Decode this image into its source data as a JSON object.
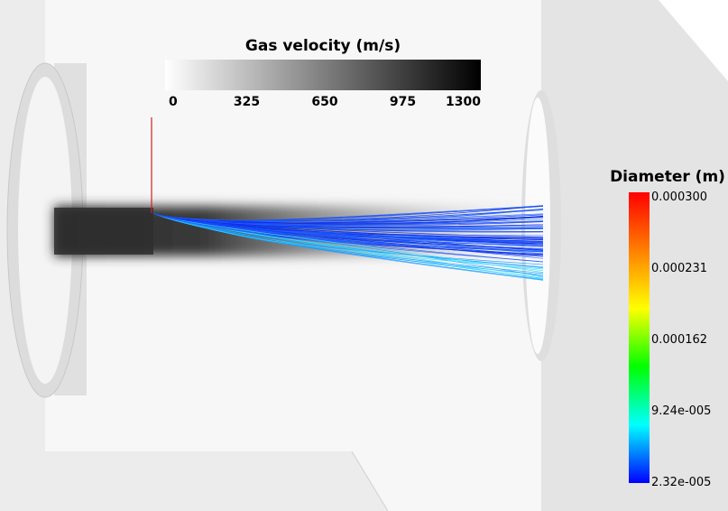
{
  "velocity_legend": {
    "title": "Gas velocity (m/s)",
    "labels": [
      "0",
      "325",
      "650",
      "975",
      "1300"
    ]
  },
  "diameter_legend": {
    "title": "Diameter (m)",
    "labels": [
      "0.000300",
      "0.000231",
      "0.000162",
      "9.24e-005",
      "2.32e-005"
    ]
  }
}
